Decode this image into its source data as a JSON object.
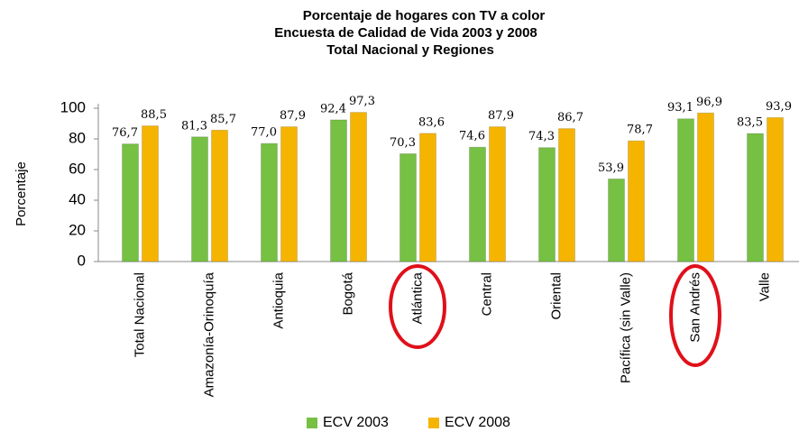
{
  "chart_data": {
    "type": "bar",
    "title": [
      "Porcentaje de hogares con TV a color",
      "Encuesta de Calidad de Vida 2003 y  2008",
      "Total Nacional y Regiones"
    ],
    "y_label": "Porcentaje",
    "categories": [
      "Total Nacional",
      "Amazonía-Orinoquía",
      "Antioquia",
      "Bogotá",
      "Atlántica",
      "Central",
      "Oriental",
      "Pacífica (sin Valle)",
      "San Andrés",
      "Valle"
    ],
    "series": [
      {
        "name": "ECV 2003",
        "color": "#76c043",
        "values": [
          76.7,
          81.3,
          77.0,
          92.4,
          70.3,
          74.6,
          74.3,
          53.9,
          93.1,
          83.5
        ],
        "value_labels": [
          "76,7",
          "81,3",
          "77,0",
          "92,4",
          "70,3",
          "74,6",
          "74,3",
          "53,9",
          "93,1",
          "83,5"
        ]
      },
      {
        "name": "ECV 2008",
        "color": "#f5b400",
        "values": [
          88.5,
          85.7,
          87.9,
          97.3,
          83.6,
          87.9,
          86.7,
          78.7,
          96.9,
          93.9
        ],
        "value_labels": [
          "88,5",
          "85,7",
          "87,9",
          "97,3",
          "83,6",
          "87,9",
          "86,7",
          "78,7",
          "96,9",
          "93,9"
        ]
      }
    ],
    "ylim": [
      0,
      100
    ],
    "yticks": [
      0,
      20,
      40,
      60,
      80,
      100
    ],
    "legend": "bottom"
  }
}
